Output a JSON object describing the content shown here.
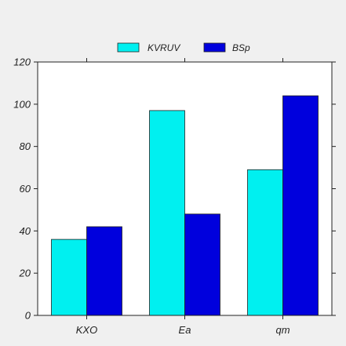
{
  "chart_data": {
    "type": "bar",
    "categories": [
      "KXO",
      "Ea",
      "qm"
    ],
    "series": [
      {
        "name": "KVRUV",
        "values": [
          36,
          97,
          69
        ],
        "color": "#00f0f0"
      },
      {
        "name": "BSp",
        "values": [
          42,
          48,
          104
        ],
        "color": "#0000dd"
      }
    ],
    "title": "",
    "xlabel": "",
    "ylabel": "",
    "ylim": [
      0,
      120
    ],
    "yticks": [
      0,
      20,
      40,
      60,
      80,
      100,
      120
    ],
    "grid": false,
    "legend_position": "top-center"
  }
}
